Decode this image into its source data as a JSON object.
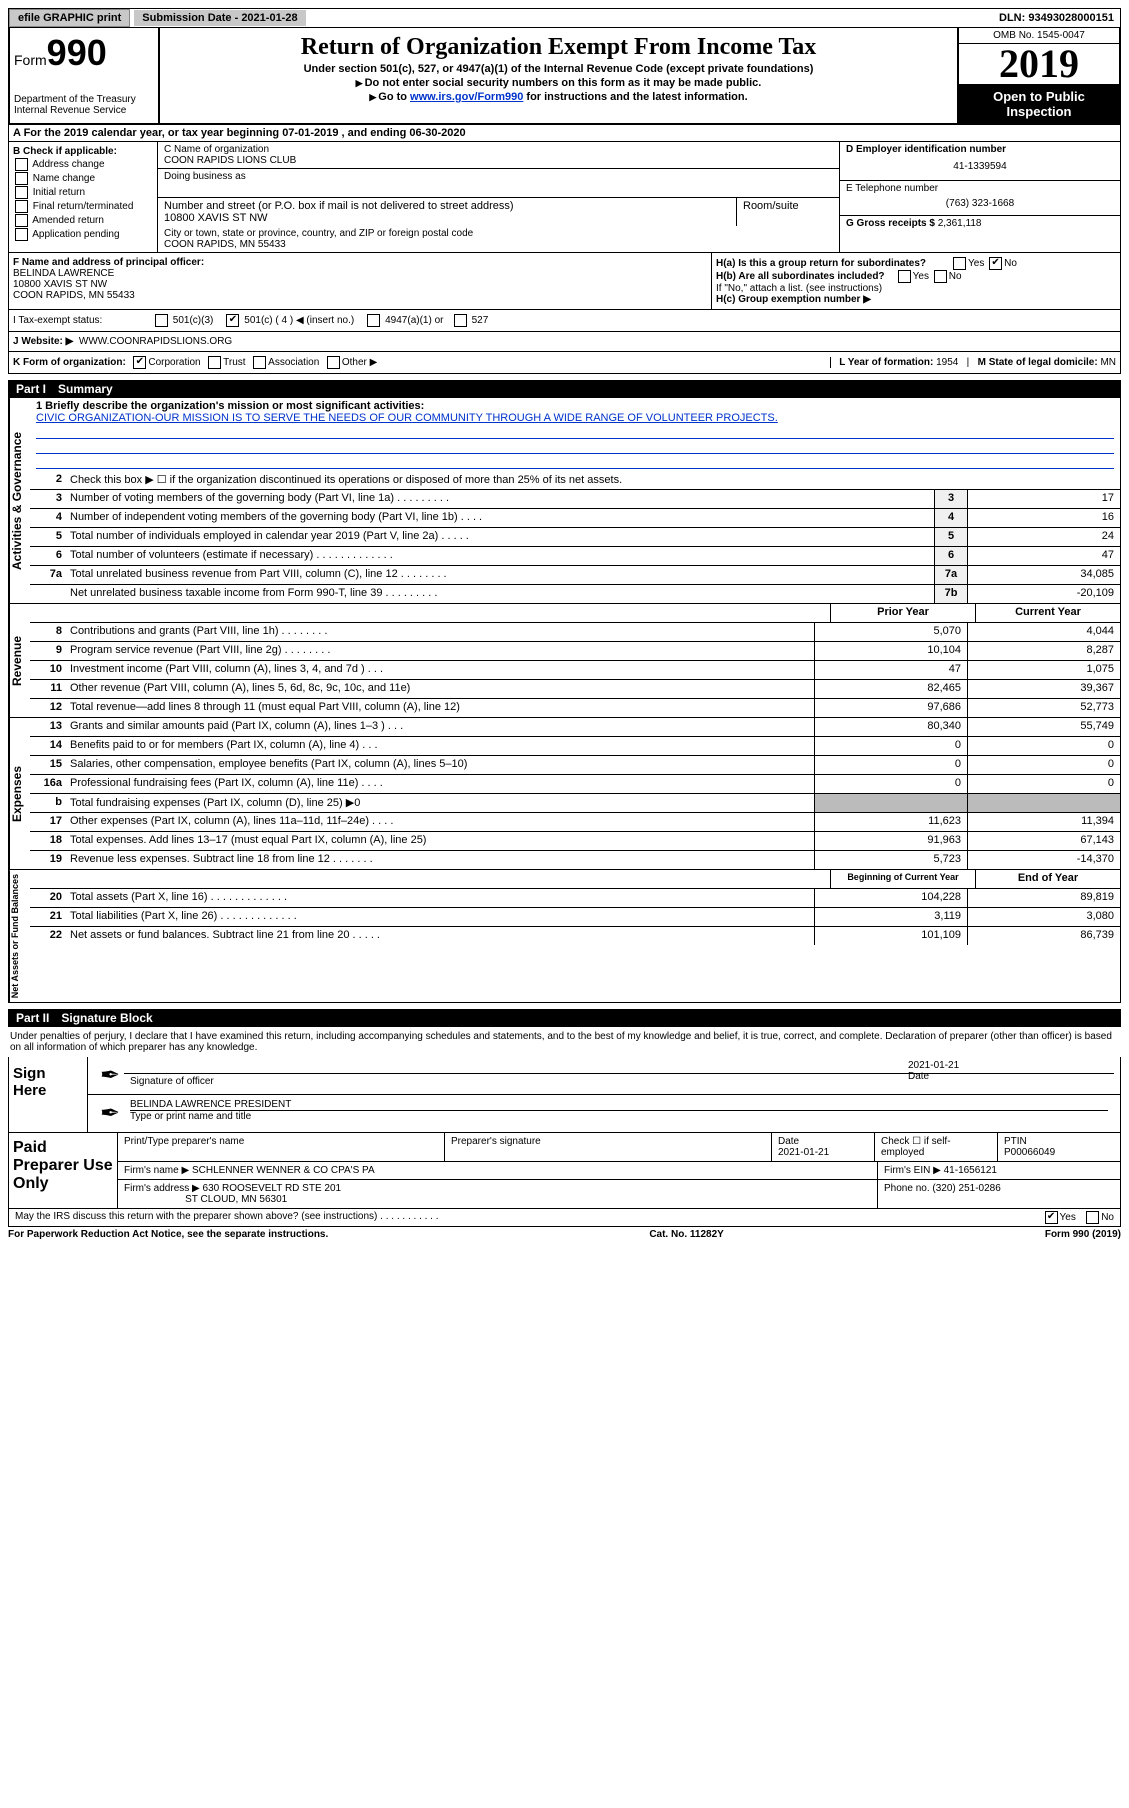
{
  "topbar": {
    "efile": "efile GRAPHIC print",
    "submission_label": "Submission Date - 2021-01-28",
    "dln": "DLN: 93493028000151"
  },
  "header": {
    "form_label": "Form",
    "form_number": "990",
    "dept": "Department of the Treasury",
    "irs": "Internal Revenue Service",
    "title": "Return of Organization Exempt From Income Tax",
    "subtitle": "Under section 501(c), 527, or 4947(a)(1) of the Internal Revenue Code (except private foundations)",
    "note1": "Do not enter social security numbers on this form as it may be made public.",
    "note2_pre": "Go to ",
    "note2_link": "www.irs.gov/Form990",
    "note2_post": " for instructions and the latest information.",
    "omb": "OMB No. 1545-0047",
    "year": "2019",
    "open": "Open to Public Inspection"
  },
  "row_a": "A For the 2019 calendar year, or tax year beginning 07-01-2019   , and ending 06-30-2020",
  "col_b": {
    "label": "B Check if applicable:",
    "items": [
      "Address change",
      "Name change",
      "Initial return",
      "Final return/terminated",
      "Amended return",
      "Application pending"
    ]
  },
  "col_c": {
    "name_label": "C Name of organization",
    "name": "COON RAPIDS LIONS CLUB",
    "dba_label": "Doing business as",
    "addr_label": "Number and street (or P.O. box if mail is not delivered to street address)",
    "addr": "10800 XAVIS ST NW",
    "room_label": "Room/suite",
    "city_label": "City or town, state or province, country, and ZIP or foreign postal code",
    "city": "COON RAPIDS, MN  55433"
  },
  "col_de": {
    "ein_label": "D Employer identification number",
    "ein": "41-1339594",
    "phone_label": "E Telephone number",
    "phone": "(763) 323-1668",
    "gross_label": "G Gross receipts $",
    "gross": "2,361,118"
  },
  "f": {
    "label": "F  Name and address of principal officer:",
    "name": "BELINDA LAWRENCE",
    "addr1": "10800 XAVIS ST NW",
    "addr2": "COON RAPIDS, MN  55433"
  },
  "h": {
    "ha": "H(a)  Is this a group return for subordinates?",
    "ha_ans": "No",
    "hb": "H(b)  Are all subordinates included?",
    "hb_note": "If \"No,\" attach a list. (see instructions)",
    "hc": "H(c)  Group exemption number ▶"
  },
  "i": {
    "label": "I  Tax-exempt status:",
    "opts": [
      "501(c)(3)",
      "501(c) ( 4 ) ◀ (insert no.)",
      "4947(a)(1) or",
      "527"
    ]
  },
  "j": {
    "label": "J  Website: ▶",
    "value": "WWW.COONRAPIDSLIONS.ORG"
  },
  "k": {
    "label": "K Form of organization:",
    "opts": [
      "Corporation",
      "Trust",
      "Association",
      "Other ▶"
    ],
    "l_label": "L Year of formation:",
    "l_val": "1954",
    "m_label": "M State of legal domicile:",
    "m_val": "MN"
  },
  "part1": {
    "title": "Part I",
    "name": "Summary"
  },
  "mission": {
    "q": "1  Briefly describe the organization's mission or most significant activities:",
    "a": "CIVIC ORGANIZATION-OUR MISSION IS TO SERVE THE NEEDS OF OUR COMMUNITY THROUGH A WIDE RANGE OF VOLUNTEER PROJECTS."
  },
  "gov_lines": [
    {
      "n": "2",
      "d": "Check this box ▶ ☐  if the organization discontinued its operations or disposed of more than 25% of its net assets."
    },
    {
      "n": "3",
      "d": "Number of voting members of the governing body (Part VI, line 1a)   .    .    .    .    .    .    .    .    .",
      "b": "3",
      "v": "17"
    },
    {
      "n": "4",
      "d": "Number of independent voting members of the governing body (Part VI, line 1b)   .    .    .    .",
      "b": "4",
      "v": "16"
    },
    {
      "n": "5",
      "d": "Total number of individuals employed in calendar year 2019 (Part V, line 2a)   .    .    .    .    .",
      "b": "5",
      "v": "24"
    },
    {
      "n": "6",
      "d": "Total number of volunteers (estimate if necessary)    .    .    .    .    .    .    .    .    .    .    .    .    .",
      "b": "6",
      "v": "47"
    },
    {
      "n": "7a",
      "d": "Total unrelated business revenue from Part VIII, column (C), line 12   .    .    .    .    .    .    .    .",
      "b": "7a",
      "v": "34,085"
    },
    {
      "n": "",
      "d": "Net unrelated business taxable income from Form 990-T, line 39    .    .    .    .    .    .    .    .    .",
      "b": "7b",
      "v": "-20,109"
    }
  ],
  "rev_header": {
    "py": "Prior Year",
    "cy": "Current Year"
  },
  "rev_lines": [
    {
      "n": "8",
      "d": "Contributions and grants (Part VIII, line 1h)    .    .    .    .    .    .    .    .",
      "py": "5,070",
      "cy": "4,044"
    },
    {
      "n": "9",
      "d": "Program service revenue (Part VIII, line 2g)    .    .    .    .    .    .    .    .",
      "py": "10,104",
      "cy": "8,287"
    },
    {
      "n": "10",
      "d": "Investment income (Part VIII, column (A), lines 3, 4, and 7d )    .    .    .",
      "py": "47",
      "cy": "1,075"
    },
    {
      "n": "11",
      "d": "Other revenue (Part VIII, column (A), lines 5, 6d, 8c, 9c, 10c, and 11e)",
      "py": "82,465",
      "cy": "39,367"
    },
    {
      "n": "12",
      "d": "Total revenue—add lines 8 through 11 (must equal Part VIII, column (A), line 12)",
      "py": "97,686",
      "cy": "52,773"
    }
  ],
  "exp_lines": [
    {
      "n": "13",
      "d": "Grants and similar amounts paid (Part IX, column (A), lines 1–3 )   .    .    .",
      "py": "80,340",
      "cy": "55,749"
    },
    {
      "n": "14",
      "d": "Benefits paid to or for members (Part IX, column (A), line 4)    .    .    .",
      "py": "0",
      "cy": "0"
    },
    {
      "n": "15",
      "d": "Salaries, other compensation, employee benefits (Part IX, column (A), lines 5–10)",
      "py": "0",
      "cy": "0"
    },
    {
      "n": "16a",
      "d": "Professional fundraising fees (Part IX, column (A), line 11e)   .    .    .    .",
      "py": "0",
      "cy": "0"
    },
    {
      "n": "b",
      "d": "Total fundraising expenses (Part IX, column (D), line 25) ▶0",
      "py": "shade",
      "cy": "shade"
    },
    {
      "n": "17",
      "d": "Other expenses (Part IX, column (A), lines 11a–11d, 11f–24e)   .    .    .    .",
      "py": "11,623",
      "cy": "11,394"
    },
    {
      "n": "18",
      "d": "Total expenses. Add lines 13–17 (must equal Part IX, column (A), line 25)",
      "py": "91,963",
      "cy": "67,143"
    },
    {
      "n": "19",
      "d": "Revenue less expenses. Subtract line 18 from line 12   .    .    .    .    .    .    .",
      "py": "5,723",
      "cy": "-14,370"
    }
  ],
  "net_header": {
    "py": "Beginning of Current Year",
    "cy": "End of Year"
  },
  "net_lines": [
    {
      "n": "20",
      "d": "Total assets (Part X, line 16)    .    .    .    .    .    .    .    .    .    .    .    .    .",
      "py": "104,228",
      "cy": "89,819"
    },
    {
      "n": "21",
      "d": "Total liabilities (Part X, line 26)    .    .    .    .    .    .    .    .    .    .    .    .    .",
      "py": "3,119",
      "cy": "3,080"
    },
    {
      "n": "22",
      "d": "Net assets or fund balances. Subtract line 21 from line 20   .    .    .    .    .",
      "py": "101,109",
      "cy": "86,739"
    }
  ],
  "part2": {
    "title": "Part II",
    "name": "Signature Block"
  },
  "sig_text": "Under penalties of perjury, I declare that I have examined this return, including accompanying schedules and statements, and to the best of my knowledge and belief, it is true, correct, and complete. Declaration of preparer (other than officer) is based on all information of which preparer has any knowledge.",
  "sign": {
    "here": "Sign Here",
    "sig_label": "Signature of officer",
    "date": "2021-01-21",
    "date_label": "Date",
    "name": "BELINDA LAWRENCE  PRESIDENT",
    "name_label": "Type or print name and title"
  },
  "preparer": {
    "label": "Paid Preparer Use Only",
    "h1": "Print/Type preparer's name",
    "h2": "Preparer's signature",
    "h3_label": "Date",
    "h3": "2021-01-21",
    "h4": "Check ☐ if self-employed",
    "h5_label": "PTIN",
    "h5": "P00066049",
    "firm_name_label": "Firm's name    ▶",
    "firm_name": "SCHLENNER WENNER & CO CPA'S PA",
    "firm_ein_label": "Firm's EIN ▶",
    "firm_ein": "41-1656121",
    "firm_addr_label": "Firm's address ▶",
    "firm_addr1": "630 ROOSEVELT RD STE 201",
    "firm_addr2": "ST CLOUD, MN  56301",
    "phone_label": "Phone no.",
    "phone": "(320) 251-0286"
  },
  "discuss": "May the IRS discuss this return with the preparer shown above? (see instructions)    .    .    .    .    .    .    .    .    .    .    .",
  "bottom": {
    "left": "For Paperwork Reduction Act Notice, see the separate instructions.",
    "mid": "Cat. No. 11282Y",
    "right": "Form 990 (2019)"
  },
  "side_labels": {
    "gov": "Activities & Governance",
    "rev": "Revenue",
    "exp": "Expenses",
    "net": "Net Assets or Fund Balances"
  }
}
